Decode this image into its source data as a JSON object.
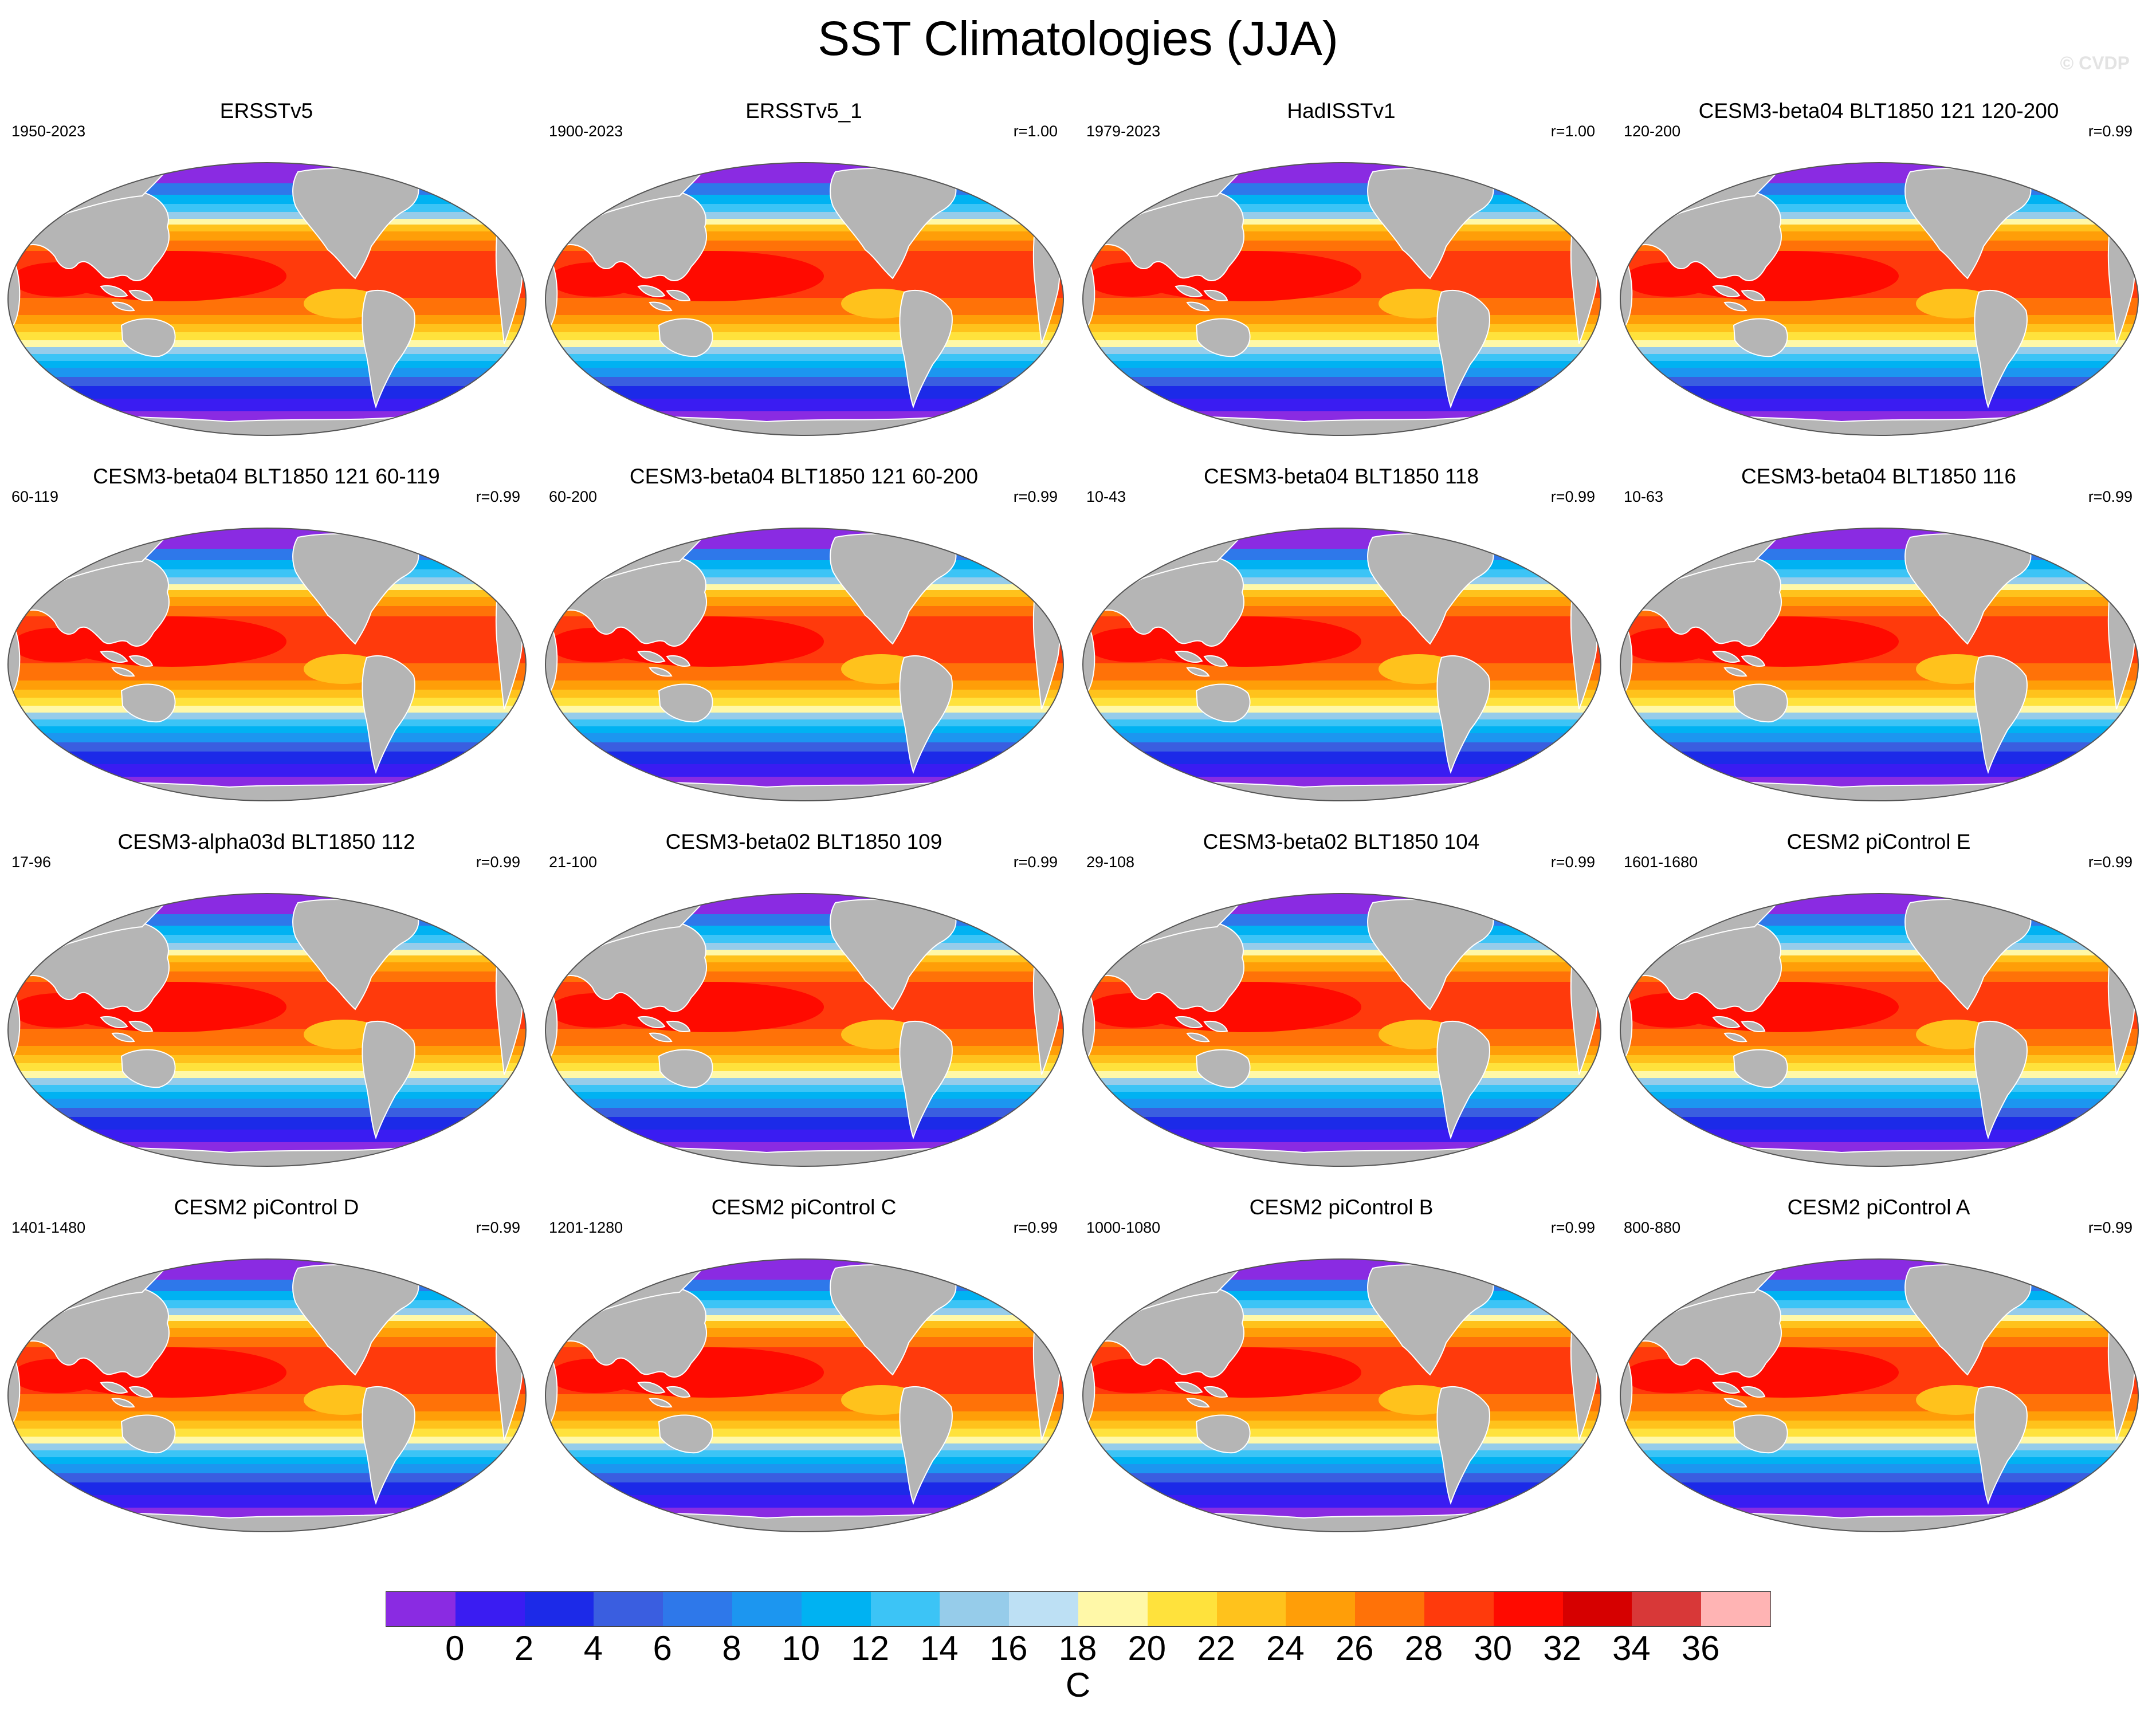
{
  "title": "SST Climatologies (JJA)",
  "watermark": "© CVDP",
  "panels": [
    {
      "title": "ERSSTv5",
      "period": "1950-2023",
      "corr": ""
    },
    {
      "title": "ERSSTv5_1",
      "period": "1900-2023",
      "corr": "r=1.00"
    },
    {
      "title": "HadISSTv1",
      "period": "1979-2023",
      "corr": "r=1.00"
    },
    {
      "title": "CESM3-beta04 BLT1850 121 120-200",
      "period": "120-200",
      "corr": "r=0.99"
    },
    {
      "title": "CESM3-beta04 BLT1850 121 60-119",
      "period": "60-119",
      "corr": "r=0.99"
    },
    {
      "title": "CESM3-beta04 BLT1850 121 60-200",
      "period": "60-200",
      "corr": "r=0.99"
    },
    {
      "title": "CESM3-beta04 BLT1850 118",
      "period": "10-43",
      "corr": "r=0.99"
    },
    {
      "title": "CESM3-beta04 BLT1850 116",
      "period": "10-63",
      "corr": "r=0.99"
    },
    {
      "title": "CESM3-alpha03d BLT1850 112",
      "period": "17-96",
      "corr": "r=0.99"
    },
    {
      "title": "CESM3-beta02 BLT1850 109",
      "period": "21-100",
      "corr": "r=0.99"
    },
    {
      "title": "CESM3-beta02 BLT1850 104",
      "period": "29-108",
      "corr": "r=0.99"
    },
    {
      "title": "CESM2 piControl E",
      "period": "1601-1680",
      "corr": "r=0.99"
    },
    {
      "title": "CESM2 piControl D",
      "period": "1401-1480",
      "corr": "r=0.99"
    },
    {
      "title": "CESM2 piControl C",
      "period": "1201-1280",
      "corr": "r=0.99"
    },
    {
      "title": "CESM2 piControl B",
      "period": "1000-1080",
      "corr": "r=0.99"
    },
    {
      "title": "CESM2 piControl A",
      "period": "800-880",
      "corr": "r=0.99"
    }
  ],
  "colorbar": {
    "colors": [
      "#8a2be2",
      "#3a1cf2",
      "#1c2ae8",
      "#3a5ee0",
      "#2e78ea",
      "#1c96f0",
      "#00b2f2",
      "#3cc4f6",
      "#96ccea",
      "#bde0f4",
      "#fff8a8",
      "#ffe23c",
      "#ffc21c",
      "#ff9e08",
      "#ff7208",
      "#ff3a0c",
      "#ff0a00",
      "#d60000",
      "#d83838",
      "#ffb4b4"
    ],
    "ticks": [
      "0",
      "2",
      "4",
      "6",
      "8",
      "10",
      "12",
      "14",
      "16",
      "18",
      "20",
      "22",
      "24",
      "26",
      "28",
      "30",
      "32",
      "34",
      "36"
    ],
    "unit": "C"
  },
  "map_colors": {
    "land": "#b5b5b5",
    "coast": "#ffffff",
    "outline": "#555555"
  }
}
